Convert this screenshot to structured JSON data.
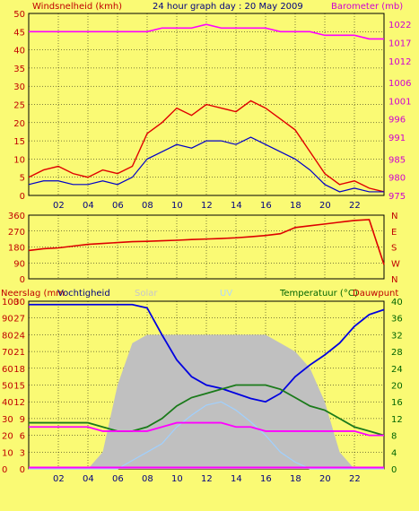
{
  "colors": {
    "page_bg": "#fafa74",
    "wind": "#e00000",
    "gust_fill": "#ff0000",
    "avg_wind": "#0000c8",
    "barometer": "#ff00ff",
    "direction": "#dd0000",
    "humidity": "#0000e0",
    "temperature": "#1a7a1a",
    "dewpoint": "#ff00ff",
    "solar": "#c0c0c0",
    "uv": "#a0d0ff",
    "rain": "#ff00ff",
    "axis_text_left": "#c00000",
    "axis_text_right": "#d000d0",
    "axis_text_green": "#006400",
    "axis_text_dark": "#000080",
    "grid": "#000000"
  },
  "header": {
    "left_label": "Windsnelheid (kmh)",
    "title": "24 hour graph day : 20 May 2009",
    "right_label": "Barometer (mb)"
  },
  "time_ticks": [
    "02",
    "04",
    "06",
    "08",
    "10",
    "12",
    "14",
    "16",
    "18",
    "20",
    "22"
  ],
  "chart_data": [
    {
      "type": "line",
      "ylabel": "Windsnelheid (kmh)",
      "y2label": "Barometer (mb)",
      "ylim": [
        0,
        50
      ],
      "y2lim": [
        975,
        1025
      ],
      "yticks": [
        0,
        5,
        10,
        15,
        20,
        25,
        30,
        35,
        40,
        45,
        50
      ],
      "y2ticks": [
        975,
        980,
        985,
        991,
        996,
        1001,
        1006,
        1012,
        1017,
        1022
      ],
      "x": [
        0,
        1,
        2,
        3,
        4,
        5,
        6,
        7,
        8,
        9,
        10,
        11,
        12,
        13,
        14,
        15,
        16,
        17,
        18,
        19,
        20,
        21,
        22,
        23,
        24
      ],
      "series": [
        {
          "values": [
            5,
            7,
            8,
            6,
            5,
            7,
            6,
            8,
            17,
            20,
            24,
            22,
            25,
            24,
            23,
            26,
            24,
            21,
            18,
            12,
            6,
            3,
            4,
            2,
            1
          ]
        },
        {
          "values": [
            3,
            4,
            4,
            3,
            3,
            4,
            3,
            5,
            10,
            12,
            14,
            13,
            15,
            15,
            14,
            16,
            14,
            12,
            10,
            7,
            3,
            1,
            2,
            1,
            1
          ]
        },
        {
          "values": [
            1020,
            1020,
            1020,
            1020,
            1020,
            1020,
            1020,
            1020,
            1020,
            1021,
            1021,
            1021,
            1022,
            1021,
            1021,
            1021,
            1021,
            1020,
            1020,
            1020,
            1019,
            1019,
            1019,
            1018,
            1018
          ]
        }
      ]
    },
    {
      "type": "line",
      "ylim": [
        0,
        360
      ],
      "yticks": [
        0,
        90,
        180,
        270,
        360
      ],
      "y2ticks": [
        "N",
        "W",
        "S",
        "E",
        "N"
      ],
      "x": [
        0,
        1,
        2,
        3,
        4,
        5,
        6,
        7,
        8,
        9,
        10,
        11,
        12,
        13,
        14,
        15,
        16,
        17,
        18,
        19,
        20,
        21,
        22,
        23,
        24
      ],
      "series": [
        {
          "values": [
            160,
            170,
            175,
            185,
            195,
            200,
            205,
            210,
            212,
            215,
            218,
            222,
            225,
            228,
            232,
            238,
            245,
            255,
            290,
            300,
            310,
            320,
            330,
            335,
            80
          ]
        }
      ]
    },
    {
      "type": "area",
      "ylabels_left": [
        "Neerslag (mm",
        "Vochtigheid"
      ],
      "ylabel_overlay": [
        "Solar",
        "UV"
      ],
      "y2label": "Temperatuur (°C)",
      "y3label": "Dauwpunt",
      "ylim_humidity": [
        0,
        100
      ],
      "yticks_humidity": [
        0,
        10,
        20,
        30,
        40,
        50,
        60,
        70,
        80,
        90,
        100
      ],
      "yticks_rain": [
        0,
        3,
        6,
        9,
        12,
        15,
        18,
        21,
        24,
        27,
        30
      ],
      "ylim_temp": [
        0,
        40
      ],
      "yticks_temp": [
        0,
        4,
        8,
        12,
        16,
        20,
        24,
        28,
        32,
        36,
        40
      ],
      "x": [
        0,
        1,
        2,
        3,
        4,
        5,
        6,
        7,
        8,
        9,
        10,
        11,
        12,
        13,
        14,
        15,
        16,
        17,
        18,
        19,
        20,
        21,
        22,
        23,
        24
      ],
      "series": [
        {
          "values": [
            98,
            98,
            98,
            98,
            98,
            98,
            98,
            98,
            96,
            80,
            65,
            55,
            50,
            48,
            45,
            42,
            40,
            45,
            55,
            62,
            68,
            75,
            85,
            92,
            95
          ]
        },
        {
          "values": [
            11,
            11,
            11,
            11,
            11,
            10,
            9,
            9,
            10,
            12,
            15,
            17,
            18,
            19,
            20,
            20,
            20,
            19,
            17,
            15,
            14,
            12,
            10,
            9,
            8
          ]
        },
        {
          "values": [
            10,
            10,
            10,
            10,
            10,
            9,
            9,
            9,
            9,
            10,
            11,
            11,
            11,
            11,
            10,
            10,
            9,
            9,
            9,
            9,
            9,
            9,
            9,
            8,
            8
          ]
        },
        {
          "values": [
            0,
            0,
            0,
            0,
            0,
            10,
            50,
            75,
            80,
            80,
            80,
            80,
            80,
            80,
            80,
            80,
            80,
            75,
            70,
            60,
            40,
            10,
            0,
            0,
            0
          ]
        },
        {
          "values": [
            0,
            0,
            0,
            0,
            0,
            0,
            0,
            5,
            10,
            15,
            25,
            32,
            38,
            40,
            35,
            28,
            20,
            10,
            4,
            0,
            0,
            0,
            0,
            0,
            0
          ]
        }
      ]
    }
  ]
}
